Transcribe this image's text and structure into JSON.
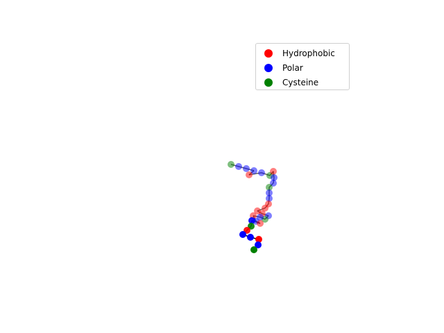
{
  "chart_data": {
    "type": "scatter",
    "title": "",
    "xlabel": "",
    "ylabel": "",
    "axes_visible": false,
    "grid": false,
    "legend_placement": "top-right",
    "categories": [
      {
        "name": "Hydrophobic",
        "color": "#ff0000"
      },
      {
        "name": "Polar",
        "color": "#0000ff"
      },
      {
        "name": "Cysteine",
        "color": "#008000"
      }
    ],
    "residues": [
      {
        "x": 333,
        "y": 237,
        "type": "Cysteine",
        "alpha": 0.5
      },
      {
        "x": 344,
        "y": 240,
        "type": "Polar",
        "alpha": 0.5
      },
      {
        "x": 355,
        "y": 243,
        "type": "Polar",
        "alpha": 0.5
      },
      {
        "x": 366,
        "y": 246,
        "type": "Polar",
        "alpha": 0.5
      },
      {
        "x": 359,
        "y": 252,
        "type": "Hydrophobic",
        "alpha": 0.5
      },
      {
        "x": 377,
        "y": 249,
        "type": "Polar",
        "alpha": 0.5
      },
      {
        "x": 389,
        "y": 253,
        "type": "Cysteine",
        "alpha": 0.5
      },
      {
        "x": 394,
        "y": 247,
        "type": "Hydrophobic",
        "alpha": 0.5
      },
      {
        "x": 395,
        "y": 256,
        "type": "Polar",
        "alpha": 0.5
      },
      {
        "x": 394,
        "y": 264,
        "type": "Polar",
        "alpha": 0.5
      },
      {
        "x": 388,
        "y": 270,
        "type": "Cysteine",
        "alpha": 0.5
      },
      {
        "x": 388,
        "y": 278,
        "type": "Polar",
        "alpha": 0.5
      },
      {
        "x": 388,
        "y": 286,
        "type": "Polar",
        "alpha": 0.5
      },
      {
        "x": 387,
        "y": 294,
        "type": "Hydrophobic",
        "alpha": 0.5
      },
      {
        "x": 382,
        "y": 300,
        "type": "Hydrophobic",
        "alpha": 0.5
      },
      {
        "x": 371,
        "y": 304,
        "type": "Hydrophobic",
        "alpha": 0.5
      },
      {
        "x": 378,
        "y": 308,
        "type": "Hydrophobic",
        "alpha": 0.5
      },
      {
        "x": 387,
        "y": 311,
        "type": "Polar",
        "alpha": 0.5
      },
      {
        "x": 382,
        "y": 316,
        "type": "Cysteine",
        "alpha": 0.5
      },
      {
        "x": 375,
        "y": 313,
        "type": "Polar",
        "alpha": 0.5
      },
      {
        "x": 365,
        "y": 311,
        "type": "Hydrophobic",
        "alpha": 0.5
      },
      {
        "x": 369,
        "y": 319,
        "type": "Polar",
        "alpha": 0.5
      },
      {
        "x": 375,
        "y": 322,
        "type": "Hydrophobic",
        "alpha": 0.5
      },
      {
        "x": 363,
        "y": 318,
        "type": "Polar",
        "alpha": 0.9
      },
      {
        "x": 362,
        "y": 326,
        "type": "Cysteine",
        "alpha": 0.9
      },
      {
        "x": 356,
        "y": 332,
        "type": "Hydrophobic",
        "alpha": 0.9
      },
      {
        "x": 350,
        "y": 338,
        "type": "Polar",
        "alpha": 1.0
      },
      {
        "x": 361,
        "y": 342,
        "type": "Polar",
        "alpha": 1.0
      },
      {
        "x": 373,
        "y": 345,
        "type": "Hydrophobic",
        "alpha": 1.0
      },
      {
        "x": 372,
        "y": 353,
        "type": "Polar",
        "alpha": 1.0
      },
      {
        "x": 366,
        "y": 360,
        "type": "Cysteine",
        "alpha": 1.0
      }
    ]
  }
}
